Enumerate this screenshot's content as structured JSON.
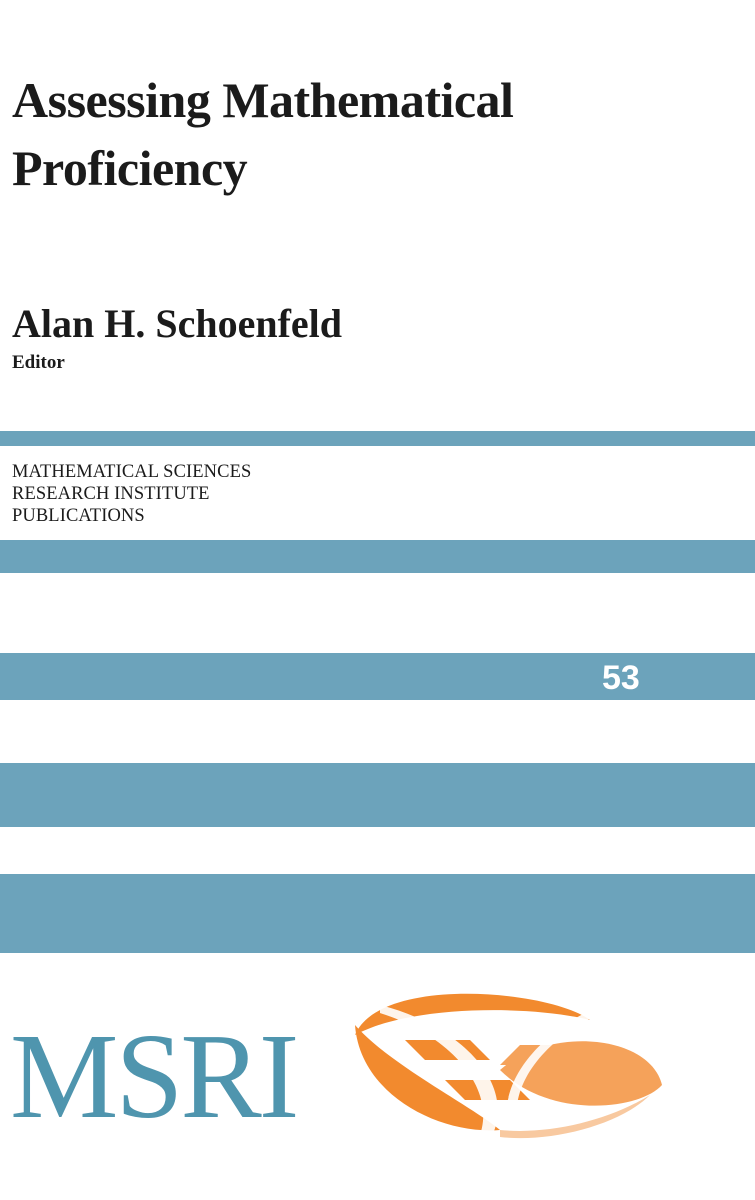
{
  "cover": {
    "title_line1": "Assessing Mathematical",
    "title_line2": "Proficiency",
    "author": "Alan H. Schoenfeld",
    "author_role": "Editor",
    "series_line1": "MATHEMATICAL SCIENCES",
    "series_line2": "RESEARCH INSTITUTE",
    "series_line3": "PUBLICATIONS",
    "volume_number": "53",
    "publisher_logo_text": "MSRI",
    "logo_mark_icon": "msri-swirl-logo-icon"
  },
  "colors": {
    "band": "#6ca3bb",
    "logo_text": "#4f95ae",
    "logo_orange": "#f28a2e",
    "text": "#1b1b1b"
  }
}
